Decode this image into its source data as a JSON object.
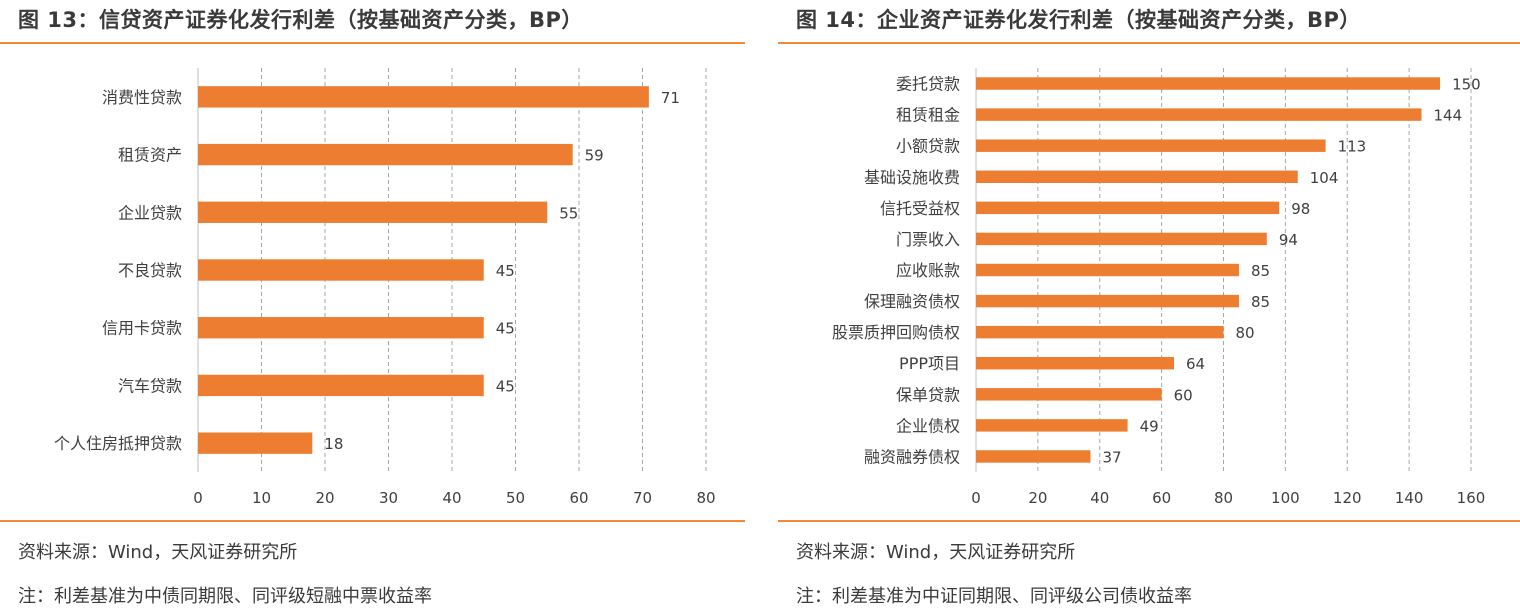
{
  "colors": {
    "bar": "#ed7d31",
    "rule": "#ee8a3a",
    "grid": "#a6a6a6"
  },
  "left": {
    "title": "图 13：信贷资产证券化发行利差（按基础资产分类，BP）",
    "source": "资料来源：Wind，天风证券研究所",
    "note": "注：利差基准为中债同期限、同评级短融中票收益率"
  },
  "right": {
    "title": "图 14：企业资产证券化发行利差（按基础资产分类，BP）",
    "source": "资料来源：Wind，天风证券研究所",
    "note": "注：利差基准为中证同期限、同评级公司债收益率"
  },
  "chart_data": [
    {
      "type": "bar",
      "orientation": "horizontal",
      "categories": [
        "消费性贷款",
        "租赁资产",
        "企业贷款",
        "不良贷款",
        "信用卡贷款",
        "汽车贷款",
        "个人住房抵押贷款"
      ],
      "values": [
        71,
        59,
        55,
        45,
        45,
        45,
        18
      ],
      "xlim": [
        0,
        80
      ],
      "ticks": [
        0,
        10,
        20,
        30,
        40,
        50,
        60,
        70,
        80
      ],
      "grid": "vertical-dashed",
      "data_labels": true
    },
    {
      "type": "bar",
      "orientation": "horizontal",
      "categories": [
        "委托贷款",
        "租赁租金",
        "小额贷款",
        "基础设施收费",
        "信托受益权",
        "门票收入",
        "应收账款",
        "保理融资债权",
        "股票质押回购债权",
        "PPP项目",
        "保单贷款",
        "企业债权",
        "融资融券债权"
      ],
      "values": [
        150,
        144,
        113,
        104,
        98,
        94,
        85,
        85,
        80,
        64,
        60,
        49,
        37
      ],
      "xlim": [
        0,
        160
      ],
      "ticks": [
        0,
        20,
        40,
        60,
        80,
        100,
        120,
        140,
        160
      ],
      "grid": "vertical-dashed",
      "data_labels": true
    }
  ]
}
